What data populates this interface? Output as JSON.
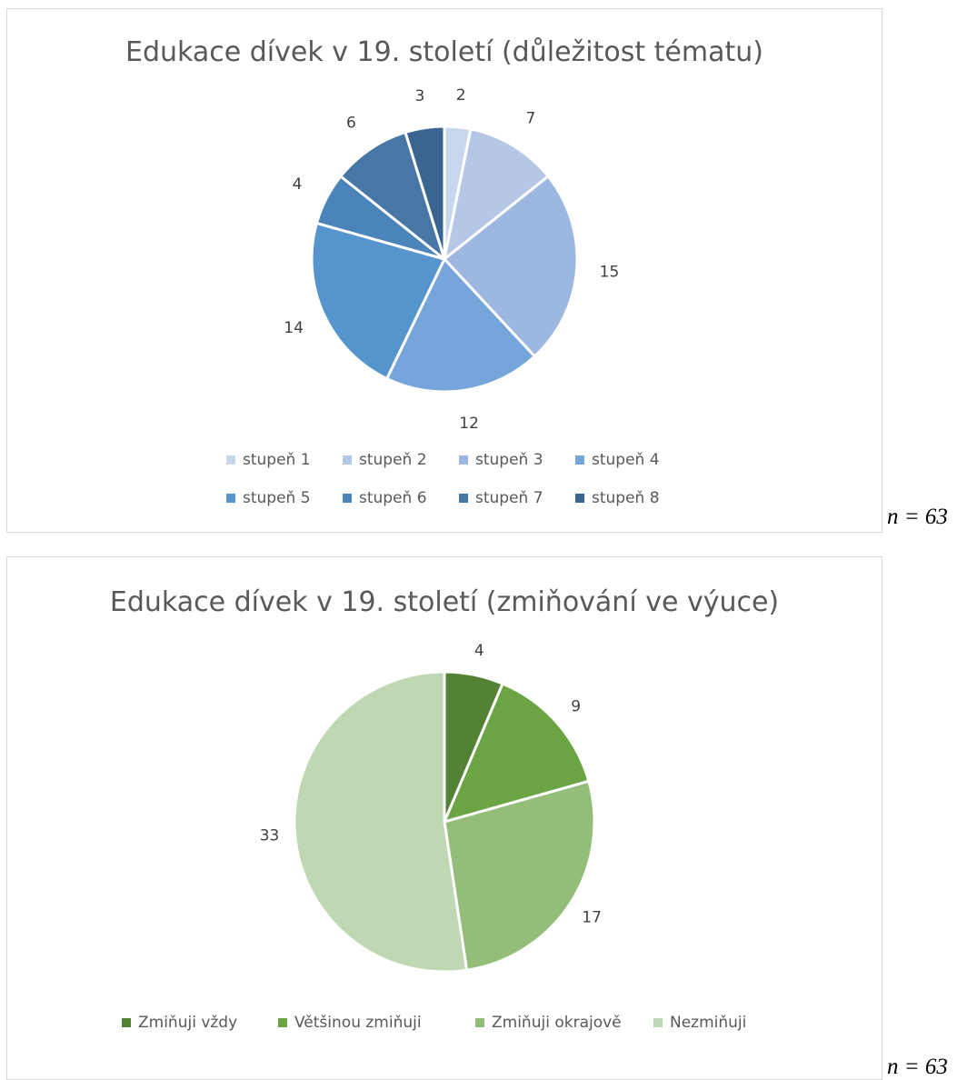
{
  "chart_data": [
    {
      "type": "pie",
      "title": "Edukace dívek v 19. století (důležitost tématu)",
      "categories": [
        "stupeň 1",
        "stupeň 2",
        "stupeň 3",
        "stupeň 4",
        "stupeň 5",
        "stupeň 6",
        "stupeň 7",
        "stupeň 8"
      ],
      "values": [
        2,
        7,
        15,
        12,
        14,
        4,
        6,
        3
      ],
      "colors": [
        "#c9d7ee",
        "#b4c7e7",
        "#9db8e0",
        "#75a5db",
        "#5594cc",
        "#4b83bb",
        "#4876a6",
        "#3b6591"
      ],
      "legend_position": "bottom",
      "note": "n = 63"
    },
    {
      "type": "pie",
      "title": "Edukace dívek v 19. století (zmiňování ve výuce)",
      "categories": [
        "Zmiňuji vždy",
        "Většinou zmiňuji",
        "Zmiňuji okrajově",
        "Nezmiňuji"
      ],
      "values": [
        4,
        9,
        17,
        33
      ],
      "colors": [
        "#548235",
        "#6aa443",
        "#93bd78",
        "#c0d7b3"
      ],
      "legend_position": "bottom",
      "note": "n = 63"
    }
  ]
}
